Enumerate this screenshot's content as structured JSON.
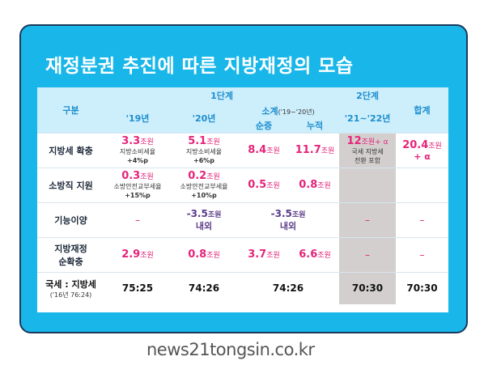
{
  "title": "재정분권 추진에 따른 지방재정의 모습",
  "watermark": "news21tongsin.co.kr",
  "header": {
    "category": "구분",
    "stage1": "1단계",
    "stage2": "2단계",
    "total": "합계",
    "y19": "'19년",
    "y20": "'20년",
    "subtotal": "소계",
    "subtotal_range": "('19~'20년)",
    "net": "순증",
    "cumulative": "누적",
    "stage2_range": "'21~'22년"
  },
  "rows": [
    {
      "label": "지방세 확충",
      "y19": {
        "value": "3.3",
        "unit": "조원",
        "note1": "지방소비세율",
        "note2": "+4%p"
      },
      "y20": {
        "value": "5.1",
        "unit": "조원",
        "note1": "지방소비세율",
        "note2": "+6%p"
      },
      "net": {
        "value": "8.4",
        "unit": "조원"
      },
      "cum": {
        "value": "11.7",
        "unit": "조원"
      },
      "stage2": {
        "value": "12",
        "unit": "조원+ α",
        "note1": "국세 지방세",
        "note2": "전환 포함"
      },
      "total": {
        "value": "20.4",
        "unit": "조원",
        "extra": "+ α"
      }
    },
    {
      "label": "소방직 지원",
      "y19": {
        "value": "0.3",
        "unit": "조원",
        "note1": "소방안전교부세율",
        "note2": "+15%p"
      },
      "y20": {
        "value": "0.2",
        "unit": "조원",
        "note1": "소방안전교부세율",
        "note2": "+10%p"
      },
      "net": {
        "value": "0.5",
        "unit": "조원"
      },
      "cum": {
        "value": "0.8",
        "unit": "조원"
      }
    },
    {
      "label": "기능이양",
      "y19": "–",
      "y20": {
        "value": "-3.5",
        "unit": "조원",
        "note": "내외"
      },
      "subtotal": {
        "value": "-3.5",
        "unit": "조원",
        "note": "내외"
      },
      "stage2": "–",
      "total": "–"
    },
    {
      "label1": "지방재정",
      "label2": "순확충",
      "y19": {
        "value": "2.9",
        "unit": "조원"
      },
      "y20": {
        "value": "0.8",
        "unit": "조원"
      },
      "net": {
        "value": "3.7",
        "unit": "조원"
      },
      "cum": {
        "value": "6.6",
        "unit": "조원"
      },
      "stage2": "–",
      "total": "–"
    }
  ],
  "ratio": {
    "label": "국세 : 지방세",
    "sublabel": "('16년 76:24)",
    "y19": "75:25",
    "y20": "74:26",
    "subtotal": "74:26",
    "stage2": "70:30",
    "total": "70:30"
  },
  "colors": {
    "frame": "#19b7e9",
    "header_bg": "#cdeefb",
    "accent_pink": "#e4247a",
    "purple": "#5b3c8a",
    "stage2_gray": "#d3cfcf"
  }
}
